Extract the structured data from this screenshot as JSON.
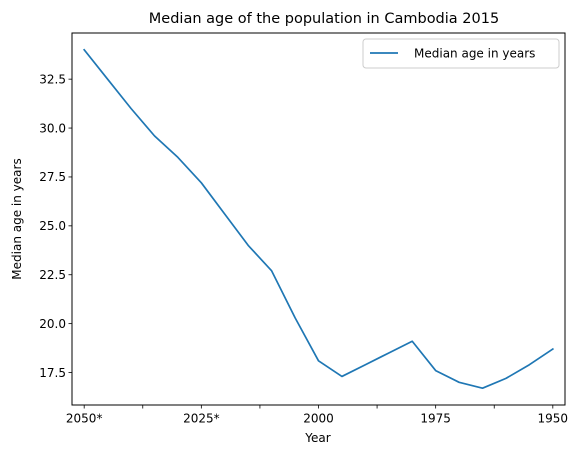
{
  "chart_data": {
    "type": "line",
    "title": "Median age of the population in Cambodia 2015",
    "xlabel": "Year",
    "ylabel": "Median age in years",
    "x_reversed": true,
    "x": [
      2050,
      2045,
      2040,
      2035,
      2030,
      2025,
      2020,
      2015,
      2010,
      2005,
      2000,
      1995,
      1990,
      1985,
      1980,
      1975,
      1970,
      1965,
      1960,
      1955,
      1950
    ],
    "x_ticks": [
      {
        "value": 2050,
        "label": "2050*"
      },
      {
        "value": 2037.5,
        "label": ""
      },
      {
        "value": 2025,
        "label": "2025*"
      },
      {
        "value": 2012.5,
        "label": ""
      },
      {
        "value": 2000,
        "label": "2000"
      },
      {
        "value": 1987.5,
        "label": ""
      },
      {
        "value": 1975,
        "label": "1975"
      },
      {
        "value": 1962.5,
        "label": ""
      },
      {
        "value": 1950,
        "label": "1950"
      }
    ],
    "y_ticks": [
      17.5,
      20.0,
      22.5,
      25.0,
      27.5,
      30.0,
      32.5
    ],
    "y_tick_labels": [
      "17.5",
      "20.0",
      "22.5",
      "25.0",
      "27.5",
      "30.0",
      "32.5"
    ],
    "ylim": [
      15.84,
      34.86
    ],
    "xlim": [
      2052.6,
      1947.4
    ],
    "series": [
      {
        "name": "Median age in years",
        "color": "#1f77b4",
        "values": [
          34.0,
          32.5,
          31.0,
          29.6,
          28.5,
          27.2,
          25.6,
          24.0,
          22.7,
          20.3,
          18.1,
          17.3,
          17.9,
          18.5,
          19.1,
          17.6,
          17.0,
          16.7,
          17.2,
          17.9,
          18.7
        ]
      }
    ],
    "legend_position": "top-right",
    "grid": false
  }
}
